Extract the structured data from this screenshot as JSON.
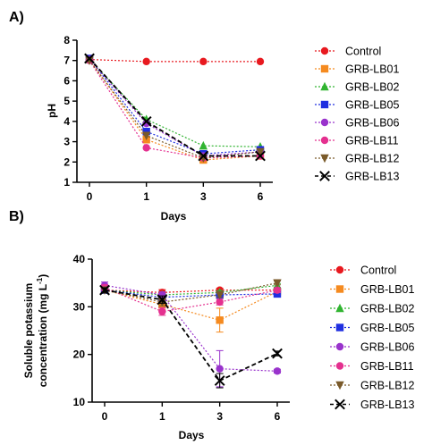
{
  "figure": {
    "panel_a_label": "A)",
    "panel_b_label": "B)"
  },
  "chart_data": [
    {
      "type": "line",
      "panel": "A)",
      "xlabel": "Days",
      "ylabel": "pH",
      "x_categories": [
        "0",
        "1",
        "3",
        "6"
      ],
      "ylim": [
        1,
        8
      ],
      "yticks": [
        1,
        2,
        3,
        4,
        5,
        6,
        7,
        8
      ],
      "legend_placement": "right",
      "series": [
        {
          "name": "Control",
          "color": "#e8191f",
          "marker": "circle",
          "values": [
            7.05,
            6.95,
            6.95,
            6.95
          ]
        },
        {
          "name": "GRB-LB01",
          "color": "#f58a1f",
          "marker": "square",
          "values": [
            7.05,
            3.1,
            2.1,
            2.3
          ]
        },
        {
          "name": "GRB-LB02",
          "color": "#31b431",
          "marker": "triangle-up",
          "values": [
            7.05,
            4.1,
            2.8,
            2.75
          ]
        },
        {
          "name": "GRB-LB05",
          "color": "#1f2fe0",
          "marker": "square",
          "values": [
            7.1,
            3.5,
            2.4,
            2.6
          ]
        },
        {
          "name": "GRB-LB06",
          "color": "#9933cc",
          "marker": "circle",
          "values": [
            7.05,
            3.9,
            2.3,
            2.5
          ]
        },
        {
          "name": "GRB-LB11",
          "color": "#e4308f",
          "marker": "circle",
          "values": [
            7.0,
            2.7,
            2.2,
            2.3
          ]
        },
        {
          "name": "GRB-LB12",
          "color": "#7a5a2a",
          "marker": "triangle-down",
          "values": [
            7.0,
            3.3,
            2.2,
            2.5
          ]
        },
        {
          "name": "GRB-LB13",
          "color": "#000000",
          "marker": "x",
          "values": [
            7.1,
            4.0,
            2.3,
            2.3
          ]
        }
      ]
    },
    {
      "type": "line",
      "panel": "B)",
      "xlabel": "Days",
      "ylabel_line1": "Soluble potassium",
      "ylabel_line2": "concentration (mg L",
      "ylabel_sup": "-1",
      "ylabel_end": ")",
      "x_categories": [
        "0",
        "1",
        "3",
        "6"
      ],
      "ylim": [
        10,
        40
      ],
      "yticks": [
        10,
        20,
        30,
        40
      ],
      "legend_placement": "right",
      "series": [
        {
          "name": "Control",
          "color": "#e8191f",
          "marker": "circle",
          "values": [
            33.5,
            33.0,
            33.5,
            33.5
          ],
          "err": [
            0.6,
            0.6,
            0.4,
            0.4
          ]
        },
        {
          "name": "GRB-LB01",
          "color": "#f58a1f",
          "marker": "square",
          "values": [
            33.5,
            30.5,
            27.2,
            33.2
          ],
          "err": [
            0.6,
            1.0,
            2.5,
            0.6
          ]
        },
        {
          "name": "GRB-LB02",
          "color": "#31b431",
          "marker": "triangle-up",
          "values": [
            33.5,
            32.5,
            33.0,
            34.5
          ],
          "err": [
            0.5,
            0.6,
            0.4,
            0.4
          ]
        },
        {
          "name": "GRB-LB05",
          "color": "#1f2fe0",
          "marker": "square",
          "values": [
            33.5,
            32.0,
            32.5,
            32.7
          ],
          "err": [
            0.5,
            0.6,
            0.4,
            0.4
          ]
        },
        {
          "name": "GRB-LB06",
          "color": "#9933cc",
          "marker": "circle",
          "values": [
            34.5,
            32.5,
            17.0,
            16.5
          ],
          "err": [
            0.7,
            0.6,
            3.8,
            0.4
          ]
        },
        {
          "name": "GRB-LB11",
          "color": "#e4308f",
          "marker": "circle",
          "values": [
            34.0,
            29.0,
            31.0,
            33.5
          ],
          "err": [
            0.6,
            0.8,
            0.6,
            0.5
          ]
        },
        {
          "name": "GRB-LB12",
          "color": "#7a5a2a",
          "marker": "triangle-down",
          "values": [
            33.5,
            31.0,
            32.5,
            35.0
          ],
          "err": [
            0.6,
            0.8,
            0.5,
            0.4
          ]
        },
        {
          "name": "GRB-LB13",
          "color": "#000000",
          "marker": "x",
          "values": [
            33.5,
            31.5,
            14.5,
            20.2
          ],
          "err": [
            0.5,
            0.8,
            1.5,
            0.5
          ]
        }
      ]
    }
  ]
}
